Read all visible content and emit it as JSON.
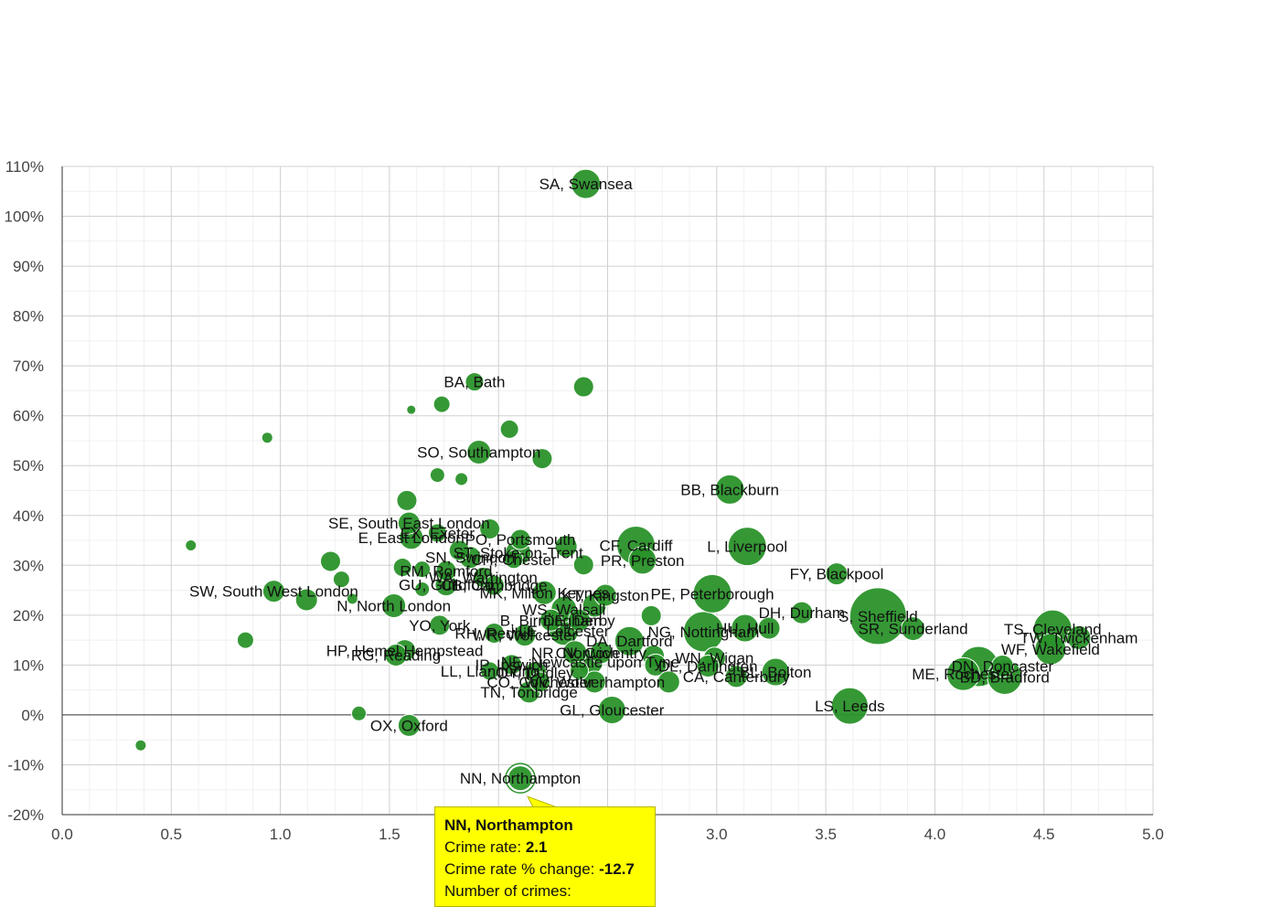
{
  "chart_data": {
    "type": "scatter",
    "title": "",
    "xlabel": "",
    "ylabel": "",
    "xlim": [
      0,
      5
    ],
    "ylim": [
      -20,
      110
    ],
    "x_ticks": [
      "0.0",
      "0.5",
      "1.0",
      "1.5",
      "2.0",
      "2.5",
      "3.0",
      "3.5",
      "4.0",
      "4.5",
      "5.0"
    ],
    "x_tick_values": [
      0,
      0.5,
      1,
      1.5,
      2,
      2.5,
      3,
      3.5,
      4,
      4.5,
      5
    ],
    "y_ticks": [
      "-20%",
      "-10%",
      "0%",
      "10%",
      "20%",
      "30%",
      "40%",
      "50%",
      "60%",
      "70%",
      "80%",
      "90%",
      "100%",
      "110%"
    ],
    "y_tick_values": [
      -20,
      -10,
      0,
      10,
      20,
      30,
      40,
      50,
      60,
      70,
      80,
      90,
      100,
      110
    ],
    "grid": true,
    "bubble_color": "#2a922a",
    "points": [
      {
        "x": 2.4,
        "y": 106.5,
        "label": "SA, Swansea",
        "s": 16
      },
      {
        "x": 1.89,
        "y": 66.8,
        "label": "BA, Bath",
        "s": 10
      },
      {
        "x": 2.39,
        "y": 65.8,
        "label": "",
        "s": 11
      },
      {
        "x": 1.6,
        "y": 61.2,
        "label": "",
        "s": 5
      },
      {
        "x": 1.74,
        "y": 62.3,
        "label": "",
        "s": 9
      },
      {
        "x": 2.05,
        "y": 57.3,
        "label": "",
        "s": 10
      },
      {
        "x": 0.94,
        "y": 55.6,
        "label": "",
        "s": 6
      },
      {
        "x": 1.91,
        "y": 52.7,
        "label": "SO, Southampton",
        "s": 13
      },
      {
        "x": 2.2,
        "y": 51.4,
        "label": "",
        "s": 11
      },
      {
        "x": 1.72,
        "y": 48.1,
        "label": "",
        "s": 8
      },
      {
        "x": 1.83,
        "y": 47.3,
        "label": "",
        "s": 7
      },
      {
        "x": 3.06,
        "y": 45.2,
        "label": "BB, Blackburn",
        "s": 16
      },
      {
        "x": 1.58,
        "y": 43.0,
        "label": "",
        "s": 11
      },
      {
        "x": 1.59,
        "y": 38.5,
        "label": "SE, South East London",
        "s": 12
      },
      {
        "x": 1.96,
        "y": 37.3,
        "label": "",
        "s": 11
      },
      {
        "x": 1.6,
        "y": 35.6,
        "label": "E, East London",
        "s": 13
      },
      {
        "x": 1.72,
        "y": 36.5,
        "label": "EX, Exeter",
        "s": 10
      },
      {
        "x": 2.1,
        "y": 35.2,
        "label": "PO, Portsmouth",
        "s": 11
      },
      {
        "x": 2.31,
        "y": 33.8,
        "label": "",
        "s": 12
      },
      {
        "x": 0.59,
        "y": 34.0,
        "label": "",
        "s": 6
      },
      {
        "x": 2.63,
        "y": 34.0,
        "label": "CF, Cardiff",
        "s": 21
      },
      {
        "x": 3.14,
        "y": 33.8,
        "label": "L, Liverpool",
        "s": 21
      },
      {
        "x": 1.82,
        "y": 33.0,
        "label": "",
        "s": 11
      },
      {
        "x": 2.09,
        "y": 32.5,
        "label": "ST, Stoke-on-Trent",
        "s": 14
      },
      {
        "x": 1.87,
        "y": 31.6,
        "label": "SN, Swindon",
        "s": 12
      },
      {
        "x": 2.07,
        "y": 31.2,
        "label": "CH, Chester",
        "s": 10
      },
      {
        "x": 1.23,
        "y": 30.8,
        "label": "",
        "s": 11
      },
      {
        "x": 2.66,
        "y": 31.0,
        "label": "PR, Preston",
        "s": 15
      },
      {
        "x": 2.39,
        "y": 30.1,
        "label": "",
        "s": 11
      },
      {
        "x": 1.56,
        "y": 29.6,
        "label": "",
        "s": 10
      },
      {
        "x": 1.65,
        "y": 29.2,
        "label": "",
        "s": 9
      },
      {
        "x": 1.76,
        "y": 28.9,
        "label": "RM, Romford",
        "s": 11
      },
      {
        "x": 3.55,
        "y": 28.3,
        "label": "FY, Blackpool",
        "s": 12
      },
      {
        "x": 1.28,
        "y": 27.2,
        "label": "",
        "s": 9
      },
      {
        "x": 1.93,
        "y": 27.6,
        "label": "WA, Warrington",
        "s": 11
      },
      {
        "x": 1.76,
        "y": 26.1,
        "label": "GU, Guildford",
        "s": 12
      },
      {
        "x": 1.98,
        "y": 26.0,
        "label": "CB, Cambridge",
        "s": 11
      },
      {
        "x": 1.65,
        "y": 25.2,
        "label": "",
        "s": 8
      },
      {
        "x": 2.21,
        "y": 24.5,
        "label": "MK, Milton Keynes",
        "s": 13
      },
      {
        "x": 2.49,
        "y": 24.0,
        "label": "KT, Kingston",
        "s": 12
      },
      {
        "x": 2.98,
        "y": 24.3,
        "label": "PE, Peterborough",
        "s": 21
      },
      {
        "x": 0.97,
        "y": 24.8,
        "label": "SW, South West London",
        "s": 12
      },
      {
        "x": 1.12,
        "y": 23.1,
        "label": "",
        "s": 12
      },
      {
        "x": 1.33,
        "y": 23.3,
        "label": "",
        "s": 6
      },
      {
        "x": 1.52,
        "y": 21.9,
        "label": "N, North London",
        "s": 13
      },
      {
        "x": 2.3,
        "y": 21.2,
        "label": "WS, Walsall",
        "s": 14
      },
      {
        "x": 2.44,
        "y": 22.0,
        "label": "",
        "s": 13
      },
      {
        "x": 2.7,
        "y": 19.9,
        "label": "",
        "s": 11
      },
      {
        "x": 3.39,
        "y": 20.5,
        "label": "DH, Durham",
        "s": 12
      },
      {
        "x": 3.74,
        "y": 19.8,
        "label": "S, Sheffield",
        "s": 31
      },
      {
        "x": 2.24,
        "y": 19.0,
        "label": "B, Birmingham",
        "s": 12
      },
      {
        "x": 2.37,
        "y": 19.0,
        "label": "DE, Derby",
        "s": 12
      },
      {
        "x": 1.73,
        "y": 18.0,
        "label": "YO, York",
        "s": 11
      },
      {
        "x": 3.24,
        "y": 17.4,
        "label": "",
        "s": 12
      },
      {
        "x": 3.13,
        "y": 17.4,
        "label": "HU, Hull",
        "s": 15
      },
      {
        "x": 2.94,
        "y": 16.7,
        "label": "NG, Nottingham",
        "s": 22
      },
      {
        "x": 4.54,
        "y": 17.2,
        "label": "TS, Cleveland",
        "s": 21
      },
      {
        "x": 4.66,
        "y": 15.5,
        "label": "TW, Twickenham",
        "s": 13
      },
      {
        "x": 2.3,
        "y": 16.9,
        "label": "LE, Leicester",
        "s": 16
      },
      {
        "x": 1.98,
        "y": 16.4,
        "label": "RH, Redhill",
        "s": 11
      },
      {
        "x": 2.12,
        "y": 16.0,
        "label": "WR, Worcester",
        "s": 12
      },
      {
        "x": 3.9,
        "y": 17.3,
        "label": "SR, Sunderland",
        "s": 13
      },
      {
        "x": 2.6,
        "y": 14.8,
        "label": "DA, Dartford",
        "s": 16
      },
      {
        "x": 0.84,
        "y": 15.0,
        "label": "",
        "s": 9
      },
      {
        "x": 1.57,
        "y": 12.9,
        "label": "HP, Hemel Hempstead",
        "s": 12
      },
      {
        "x": 1.53,
        "y": 12.0,
        "label": "RG, Reading",
        "s": 12
      },
      {
        "x": 2.35,
        "y": 12.5,
        "label": "NR, Norwich",
        "s": 13
      },
      {
        "x": 2.47,
        "y": 12.5,
        "label": "CV, Coventry",
        "s": 12
      },
      {
        "x": 4.53,
        "y": 13.2,
        "label": "WF, Wakefield",
        "s": 17
      },
      {
        "x": 2.71,
        "y": 11.8,
        "label": "",
        "s": 12
      },
      {
        "x": 2.99,
        "y": 11.4,
        "label": "WN, Wigan",
        "s": 12
      },
      {
        "x": 2.42,
        "y": 10.6,
        "label": "NE, Newcastle upon Tyne",
        "s": 14
      },
      {
        "x": 2.06,
        "y": 10.1,
        "label": "IP, Ipswich",
        "s": 11
      },
      {
        "x": 2.72,
        "y": 10.0,
        "label": "",
        "s": 12
      },
      {
        "x": 2.96,
        "y": 9.8,
        "label": "DL, Darlington",
        "s": 12
      },
      {
        "x": 4.2,
        "y": 9.7,
        "label": "",
        "s": 22
      },
      {
        "x": 4.31,
        "y": 9.8,
        "label": "DN, Doncaster",
        "s": 12
      },
      {
        "x": 1.96,
        "y": 8.8,
        "label": "LL, Llandudno",
        "s": 10
      },
      {
        "x": 2.17,
        "y": 8.5,
        "label": "DY, Dudley",
        "s": 12
      },
      {
        "x": 2.37,
        "y": 8.9,
        "label": "",
        "s": 10
      },
      {
        "x": 3.27,
        "y": 8.6,
        "label": "BL, Bolton",
        "s": 15
      },
      {
        "x": 4.13,
        "y": 8.2,
        "label": "ME, Rochester",
        "s": 18
      },
      {
        "x": 4.32,
        "y": 7.6,
        "label": "BD, Bradford",
        "s": 19
      },
      {
        "x": 3.09,
        "y": 7.7,
        "label": "CA, Canterbury",
        "s": 12
      },
      {
        "x": 2.19,
        "y": 6.6,
        "label": "CO, Colchester",
        "s": 11
      },
      {
        "x": 2.44,
        "y": 6.6,
        "label": "WV, Wolverhampton",
        "s": 12
      },
      {
        "x": 2.78,
        "y": 6.6,
        "label": "",
        "s": 12
      },
      {
        "x": 2.14,
        "y": 4.6,
        "label": "TN, Tonbridge",
        "s": 12
      },
      {
        "x": 3.61,
        "y": 1.8,
        "label": "LS, Leeds",
        "s": 20
      },
      {
        "x": 2.52,
        "y": 1.0,
        "label": "GL, Gloucester",
        "s": 15
      },
      {
        "x": 1.36,
        "y": 0.3,
        "label": "",
        "s": 8
      },
      {
        "x": 1.59,
        "y": -2.1,
        "label": "OX, Oxford",
        "s": 12
      },
      {
        "x": 0.36,
        "y": -6.1,
        "label": "",
        "s": 6
      },
      {
        "x": 2.1,
        "y": -12.7,
        "label": "NN, Northampton",
        "s": 14,
        "highlight": true
      }
    ]
  },
  "tooltip": {
    "title": "NN, Northampton",
    "rate_label": "Crime rate:",
    "rate_value": "2.1",
    "change_label": "Crime rate % change:",
    "change_value": "-12.7",
    "count_label": "Number of crimes:"
  }
}
